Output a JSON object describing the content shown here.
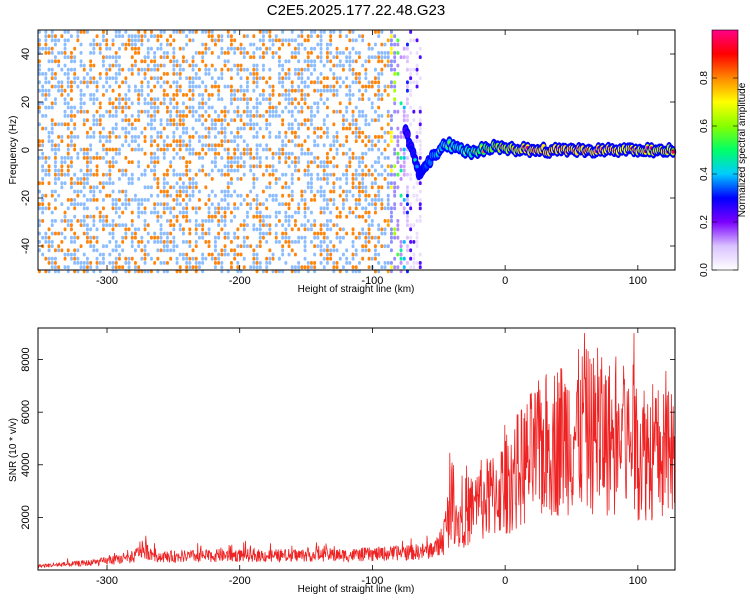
{
  "title": "C2E5.2025.177.22.48.G23",
  "chart_data": [
    {
      "type": "heatmap",
      "panel": "spectrogram",
      "xlabel": "Height of straight line (km)",
      "ylabel": "Frequency (Hz)",
      "xlim": [
        -352,
        128
      ],
      "ylim": [
        -50,
        50
      ],
      "xticks": [
        -300,
        -200,
        -100,
        0,
        100
      ],
      "yticks": [
        -40,
        -20,
        0,
        20,
        40
      ],
      "colorbar": {
        "label": "Normalized spectral amplitude",
        "range": [
          0.0,
          1.0
        ],
        "ticks": [
          0.0,
          0.2,
          0.4,
          0.6,
          0.8
        ],
        "colormap": [
          "#ffffff",
          "#d9c2ff",
          "#7a00ff",
          "#0000ff",
          "#00ccff",
          "#00ff66",
          "#88ff00",
          "#ffff00",
          "#ff8800",
          "#ff0000",
          "#ff0088"
        ]
      },
      "features": {
        "noise_region_x": [
          -352,
          -65
        ],
        "noise_amplitude": 0.12,
        "signal_onset_x": -75,
        "signal_line": [
          {
            "x": -75,
            "y": 8,
            "z": 0.3
          },
          {
            "x": -65,
            "y": -10,
            "z": 0.35
          },
          {
            "x": -55,
            "y": -3,
            "z": 0.45
          },
          {
            "x": -45,
            "y": 3,
            "z": 0.5
          },
          {
            "x": -30,
            "y": -1,
            "z": 0.55
          },
          {
            "x": -10,
            "y": 1,
            "z": 0.7
          },
          {
            "x": 20,
            "y": 0,
            "z": 0.9
          },
          {
            "x": 60,
            "y": 0,
            "z": 0.9
          },
          {
            "x": 100,
            "y": 0,
            "z": 0.85
          },
          {
            "x": 128,
            "y": 0,
            "z": 0.8
          }
        ]
      }
    },
    {
      "type": "line",
      "panel": "snr",
      "xlabel": "Height of straight line (km)",
      "ylabel": "SNR (10 * v/v)",
      "xlim": [
        -352,
        128
      ],
      "ylim": [
        0,
        9200
      ],
      "xticks": [
        -300,
        -200,
        -100,
        0,
        100
      ],
      "yticks": [
        2000,
        4000,
        6000,
        8000
      ],
      "color": "#ee2222",
      "series": [
        {
          "x": [
            -352,
            -330,
            -310,
            -295,
            -280,
            -275,
            -260,
            -240,
            -220,
            -200,
            -180,
            -160,
            -140,
            -120,
            -100,
            -80,
            -60,
            -50,
            -45,
            -40,
            -35,
            -30,
            -20,
            -10,
            0,
            10,
            20,
            30,
            40,
            50,
            60,
            70,
            80,
            90,
            100,
            110,
            120,
            128
          ],
          "values": [
            150,
            220,
            280,
            380,
            450,
            800,
            500,
            520,
            540,
            560,
            540,
            560,
            580,
            560,
            600,
            650,
            700,
            900,
            1500,
            2800,
            1800,
            2200,
            2500,
            2800,
            3200,
            3800,
            4300,
            4700,
            5000,
            5200,
            5300,
            5100,
            5000,
            4900,
            4700,
            4500,
            4300,
            4200
          ]
        }
      ]
    }
  ]
}
